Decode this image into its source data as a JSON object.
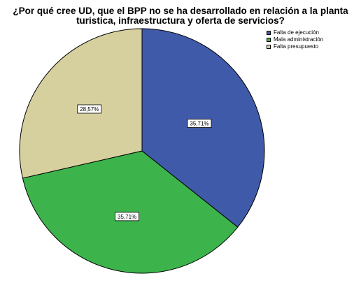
{
  "chart_data": {
    "type": "pie",
    "title_lines": [
      "¿Por qué cree UD, que el BPP no se ha desarrollado en relación a la planta",
      "turistica, infraestructura y oferta de servicios?"
    ],
    "categories": [
      "Falta de ejecución",
      "Mala administración",
      "Falta presupuesto"
    ],
    "values": [
      35.71,
      35.71,
      28.57
    ],
    "data_labels": [
      "35,71%",
      "35,71%",
      "28,57%"
    ],
    "colors": [
      "#3f5aa8",
      "#3cb44b",
      "#d6cf9e"
    ],
    "legend_position": "top-right",
    "start_angle_deg": 0,
    "direction": "clockwise"
  }
}
